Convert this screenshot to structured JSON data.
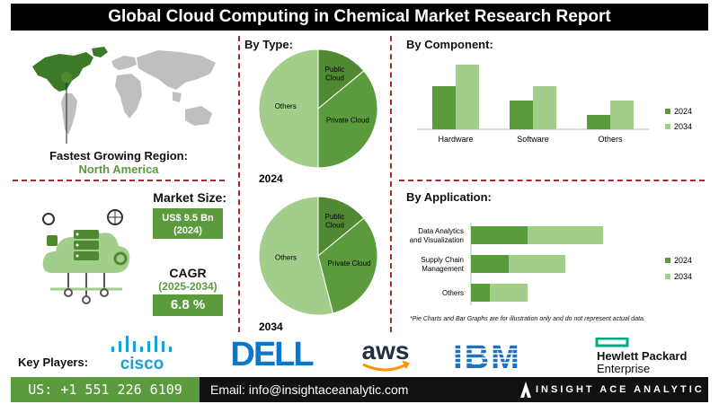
{
  "header": {
    "title": "Global Cloud Computing in Chemical Market Research Report"
  },
  "region": {
    "label": "Fastest Growing Region:",
    "value": "North America"
  },
  "market_size": {
    "label": "Market Size:",
    "value": "US$ 9.5 Bn",
    "year": "(2024)"
  },
  "cagr": {
    "label": "CAGR",
    "period": "(2025-2034)",
    "value": "6.8 %"
  },
  "sections": {
    "by_type": "By Type:",
    "by_component": "By  Component:",
    "by_application": "By Application:"
  },
  "note": "*Pie Charts and Bar Graphs are for illustration only and do not represent actual data.",
  "key_players": {
    "label": "Key Players:",
    "logos": [
      "cisco",
      "DELL",
      "aws",
      "IBM",
      "Hewlett Packard",
      "Enterprise"
    ]
  },
  "footer": {
    "phone": "US: +1 551 226 6109",
    "email": "Email: info@insightaceanalytic.com",
    "brand": "INSIGHT ACE ANALYTIC"
  },
  "colors": {
    "dark_green": "#5b9b3e",
    "light_green": "#a3cd8b",
    "mid_green": "#8cb878",
    "deep_green": "#4f8a33",
    "divider": "#a52a2a"
  },
  "chart_data": [
    {
      "type": "pie",
      "title": "By Type:",
      "caption": "2024",
      "labels": [
        "Public Cloud",
        "Private Cloud",
        "Others"
      ],
      "values": [
        14,
        36,
        50
      ]
    },
    {
      "type": "pie",
      "title": "By Type:",
      "caption": "2034",
      "labels": [
        "Public Cloud",
        "Private Cloud",
        "Others"
      ],
      "values": [
        14,
        32,
        54
      ]
    },
    {
      "type": "bar",
      "title": "By  Component:",
      "categories": [
        "Hardware",
        "Software",
        "Others"
      ],
      "series": [
        {
          "name": "2024",
          "values": [
            3,
            2,
            1
          ]
        },
        {
          "name": "2034",
          "values": [
            4.5,
            3,
            2
          ]
        }
      ],
      "ylim": [
        0,
        5
      ],
      "legend": "right"
    },
    {
      "type": "bar",
      "orientation": "horizontal",
      "stacked": true,
      "title": "By Application:",
      "categories": [
        "Data Analytics and Visualization",
        "Supply Chain Management",
        "Others"
      ],
      "series": [
        {
          "name": "2024",
          "values": [
            3,
            2,
            1
          ]
        },
        {
          "name": "2034",
          "values": [
            4,
            3,
            2
          ]
        }
      ],
      "xlim": [
        0,
        10
      ],
      "legend": "right"
    }
  ]
}
